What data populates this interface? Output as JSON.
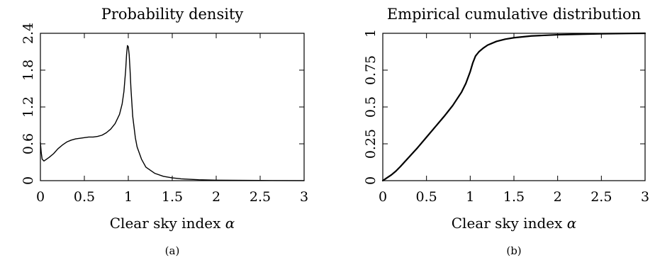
{
  "chart_data": [
    {
      "type": "line",
      "title": "Probability density",
      "xlabel": "Clear sky index",
      "xlabel_symbol": "α",
      "caption": "(a)",
      "xlim": [
        0,
        3
      ],
      "ylim": [
        0,
        2.4
      ],
      "xticks": [
        0,
        0.5,
        1,
        1.5,
        2,
        2.5,
        3
      ],
      "xtick_labels": [
        "0",
        "0.5",
        "1",
        "1.5",
        "2",
        "2.5",
        "3"
      ],
      "yticks": [
        0,
        0.6,
        1.2,
        1.8,
        2.4
      ],
      "ytick_labels": [
        "0",
        "0.6",
        "1.2",
        "1.8",
        "2.4"
      ],
      "grid": false,
      "series": [
        {
          "x": [
            0,
            0.01,
            0.02,
            0.04,
            0.06,
            0.1,
            0.15,
            0.2,
            0.25,
            0.3,
            0.35,
            0.4,
            0.45,
            0.5,
            0.55,
            0.6,
            0.65,
            0.7,
            0.75,
            0.8,
            0.85,
            0.9,
            0.93,
            0.95,
            0.97,
            0.98,
            0.99,
            1.0,
            1.01,
            1.02,
            1.03,
            1.05,
            1.08,
            1.1,
            1.15,
            1.2,
            1.3,
            1.4,
            1.5,
            1.6,
            1.8,
            2.0,
            2.5,
            3.0
          ],
          "y": [
            0.62,
            0.45,
            0.35,
            0.32,
            0.34,
            0.38,
            0.44,
            0.52,
            0.58,
            0.63,
            0.66,
            0.68,
            0.69,
            0.7,
            0.71,
            0.71,
            0.72,
            0.74,
            0.78,
            0.84,
            0.93,
            1.08,
            1.25,
            1.45,
            1.8,
            2.05,
            2.2,
            2.18,
            2.05,
            1.8,
            1.5,
            1.05,
            0.7,
            0.55,
            0.35,
            0.22,
            0.12,
            0.07,
            0.045,
            0.03,
            0.015,
            0.008,
            0.003,
            0.001
          ]
        }
      ]
    },
    {
      "type": "line",
      "title": "Empirical cumulative distribution",
      "xlabel": "Clear sky index",
      "xlabel_symbol": "α",
      "caption": "(b)",
      "xlim": [
        0,
        3
      ],
      "ylim": [
        0,
        1
      ],
      "xticks": [
        0,
        0.5,
        1,
        1.5,
        2,
        2.5,
        3
      ],
      "xtick_labels": [
        "0",
        "0.5",
        "1",
        "1.5",
        "2",
        "2.5",
        "3"
      ],
      "yticks": [
        0,
        0.25,
        0.5,
        0.75,
        1
      ],
      "ytick_labels": [
        "0",
        "0.25",
        "0.5",
        "0.75",
        "1"
      ],
      "grid": false,
      "series": [
        {
          "x": [
            0,
            0.05,
            0.1,
            0.15,
            0.2,
            0.3,
            0.4,
            0.5,
            0.6,
            0.7,
            0.8,
            0.9,
            0.95,
            1.0,
            1.03,
            1.06,
            1.1,
            1.15,
            1.2,
            1.3,
            1.4,
            1.5,
            1.7,
            2.0,
            2.5,
            3.0
          ],
          "y": [
            0,
            0.02,
            0.04,
            0.065,
            0.095,
            0.16,
            0.225,
            0.295,
            0.365,
            0.435,
            0.51,
            0.6,
            0.66,
            0.74,
            0.8,
            0.845,
            0.875,
            0.9,
            0.92,
            0.945,
            0.96,
            0.97,
            0.982,
            0.99,
            0.997,
            1.0
          ]
        }
      ]
    }
  ]
}
